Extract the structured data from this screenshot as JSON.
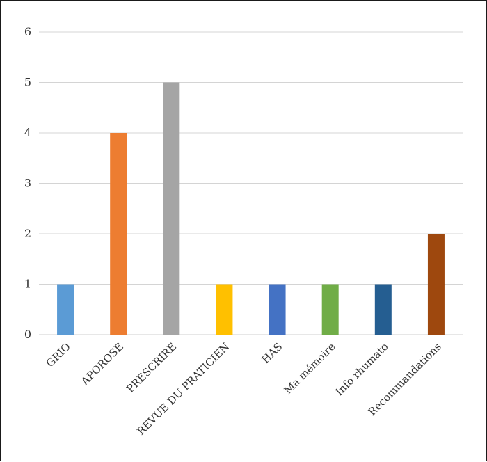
{
  "chart_data": {
    "type": "bar",
    "title": "",
    "xlabel": "",
    "ylabel": "",
    "ylim": [
      0,
      6
    ],
    "yticks": [
      0,
      1,
      2,
      3,
      4,
      5,
      6
    ],
    "grid": true,
    "legend": "none",
    "categories": [
      "GRIO",
      "APOROSE",
      "PRESCRIRE",
      "REVUE DU PRATICIEN",
      "HAS",
      "Ma mémoire",
      "Info rhumato",
      "Recommandations"
    ],
    "values": [
      1,
      4,
      5,
      1,
      1,
      1,
      1,
      2
    ],
    "colors": [
      "#5b9bd5",
      "#ed7d31",
      "#a5a5a5",
      "#ffc000",
      "#4472c4",
      "#70ad47",
      "#255e91",
      "#9e480e"
    ]
  }
}
